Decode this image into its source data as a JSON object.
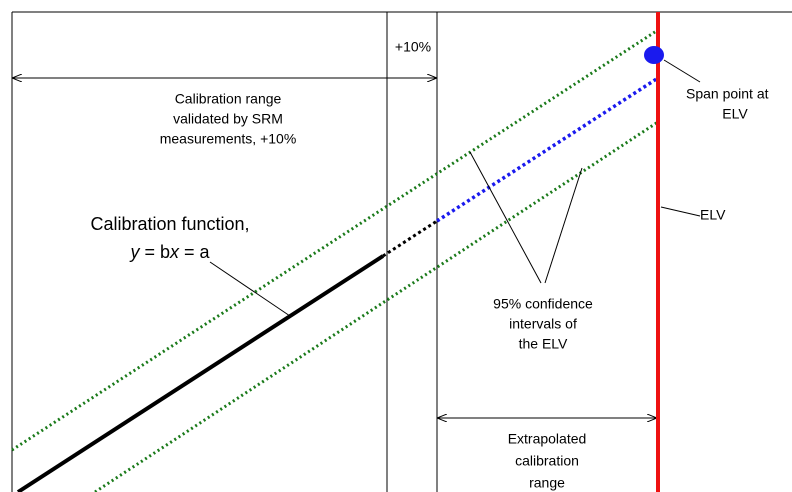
{
  "labels": {
    "plus_ten": "+10%",
    "calibration_range": [
      "Calibration range",
      "validated by SRM",
      "measurements, +10%"
    ],
    "span_point": [
      "Span point at",
      "ELV"
    ],
    "elv": "ELV",
    "calibration_function": "Calibration function,",
    "equation": {
      "y": "y",
      "eq1": " = b",
      "x": "x",
      "eq2": " = a"
    },
    "confidence": [
      "95% confidence",
      "intervals of",
      "the ELV"
    ],
    "extrapolated": [
      "Extrapolated",
      "calibration",
      "range"
    ]
  }
}
